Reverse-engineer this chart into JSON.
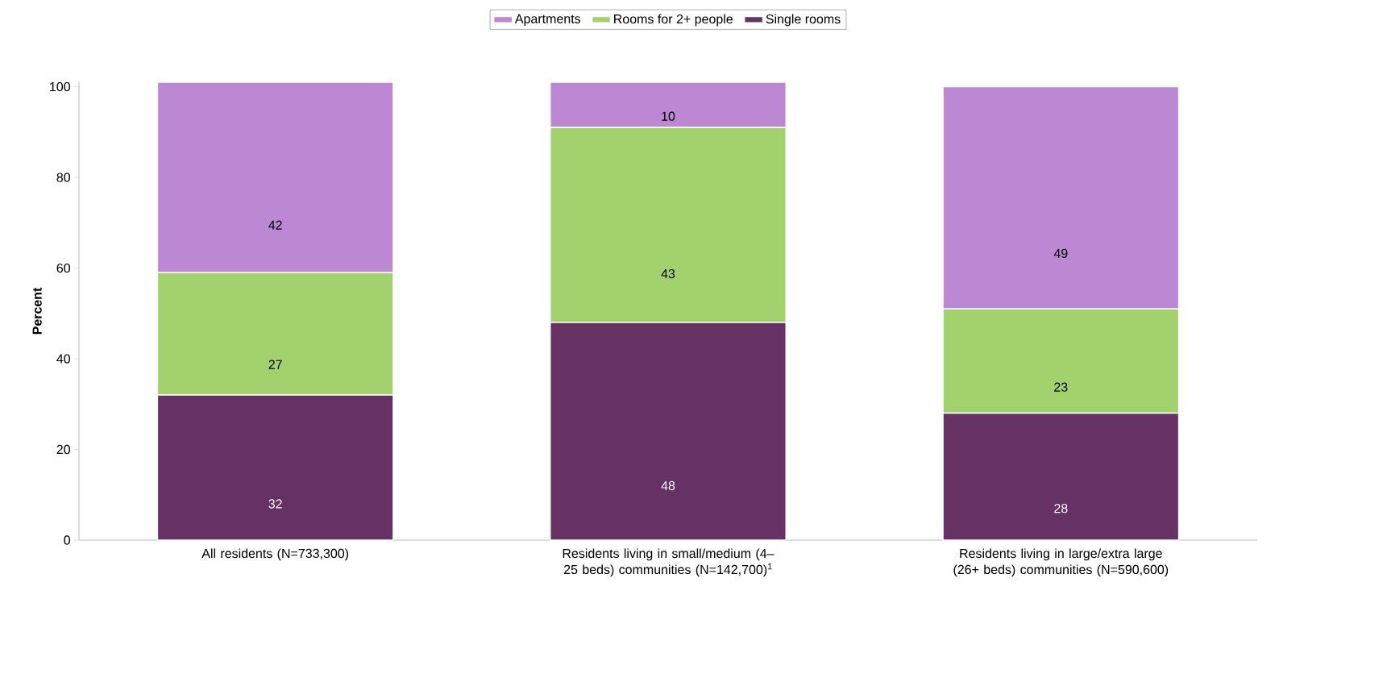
{
  "chart_data": {
    "type": "bar",
    "stacked": true,
    "ylabel": "Percent",
    "categories": [
      "All residents (N=733,300)",
      "Residents living in small/medium (4–25 beds) communities (N=142,700)$^{1}$",
      "Residents living in large/extra large (26+ beds) communities (N=590,600)"
    ],
    "series": [
      {
        "name": "Single rooms",
        "color": "#653263",
        "values": [
          32,
          48,
          28
        ]
      },
      {
        "name": "Rooms for 2+ people",
        "color": "#a3d16e",
        "values": [
          27,
          43,
          23
        ]
      },
      {
        "name": "Apartments",
        "color": "#bc87d3",
        "values": [
          42,
          10,
          49
        ]
      }
    ],
    "ylim": [
      0,
      101
    ],
    "yticks": [
      0,
      20,
      40,
      60,
      80,
      100
    ],
    "data_labels": true,
    "legend": "top",
    "grid": false
  }
}
